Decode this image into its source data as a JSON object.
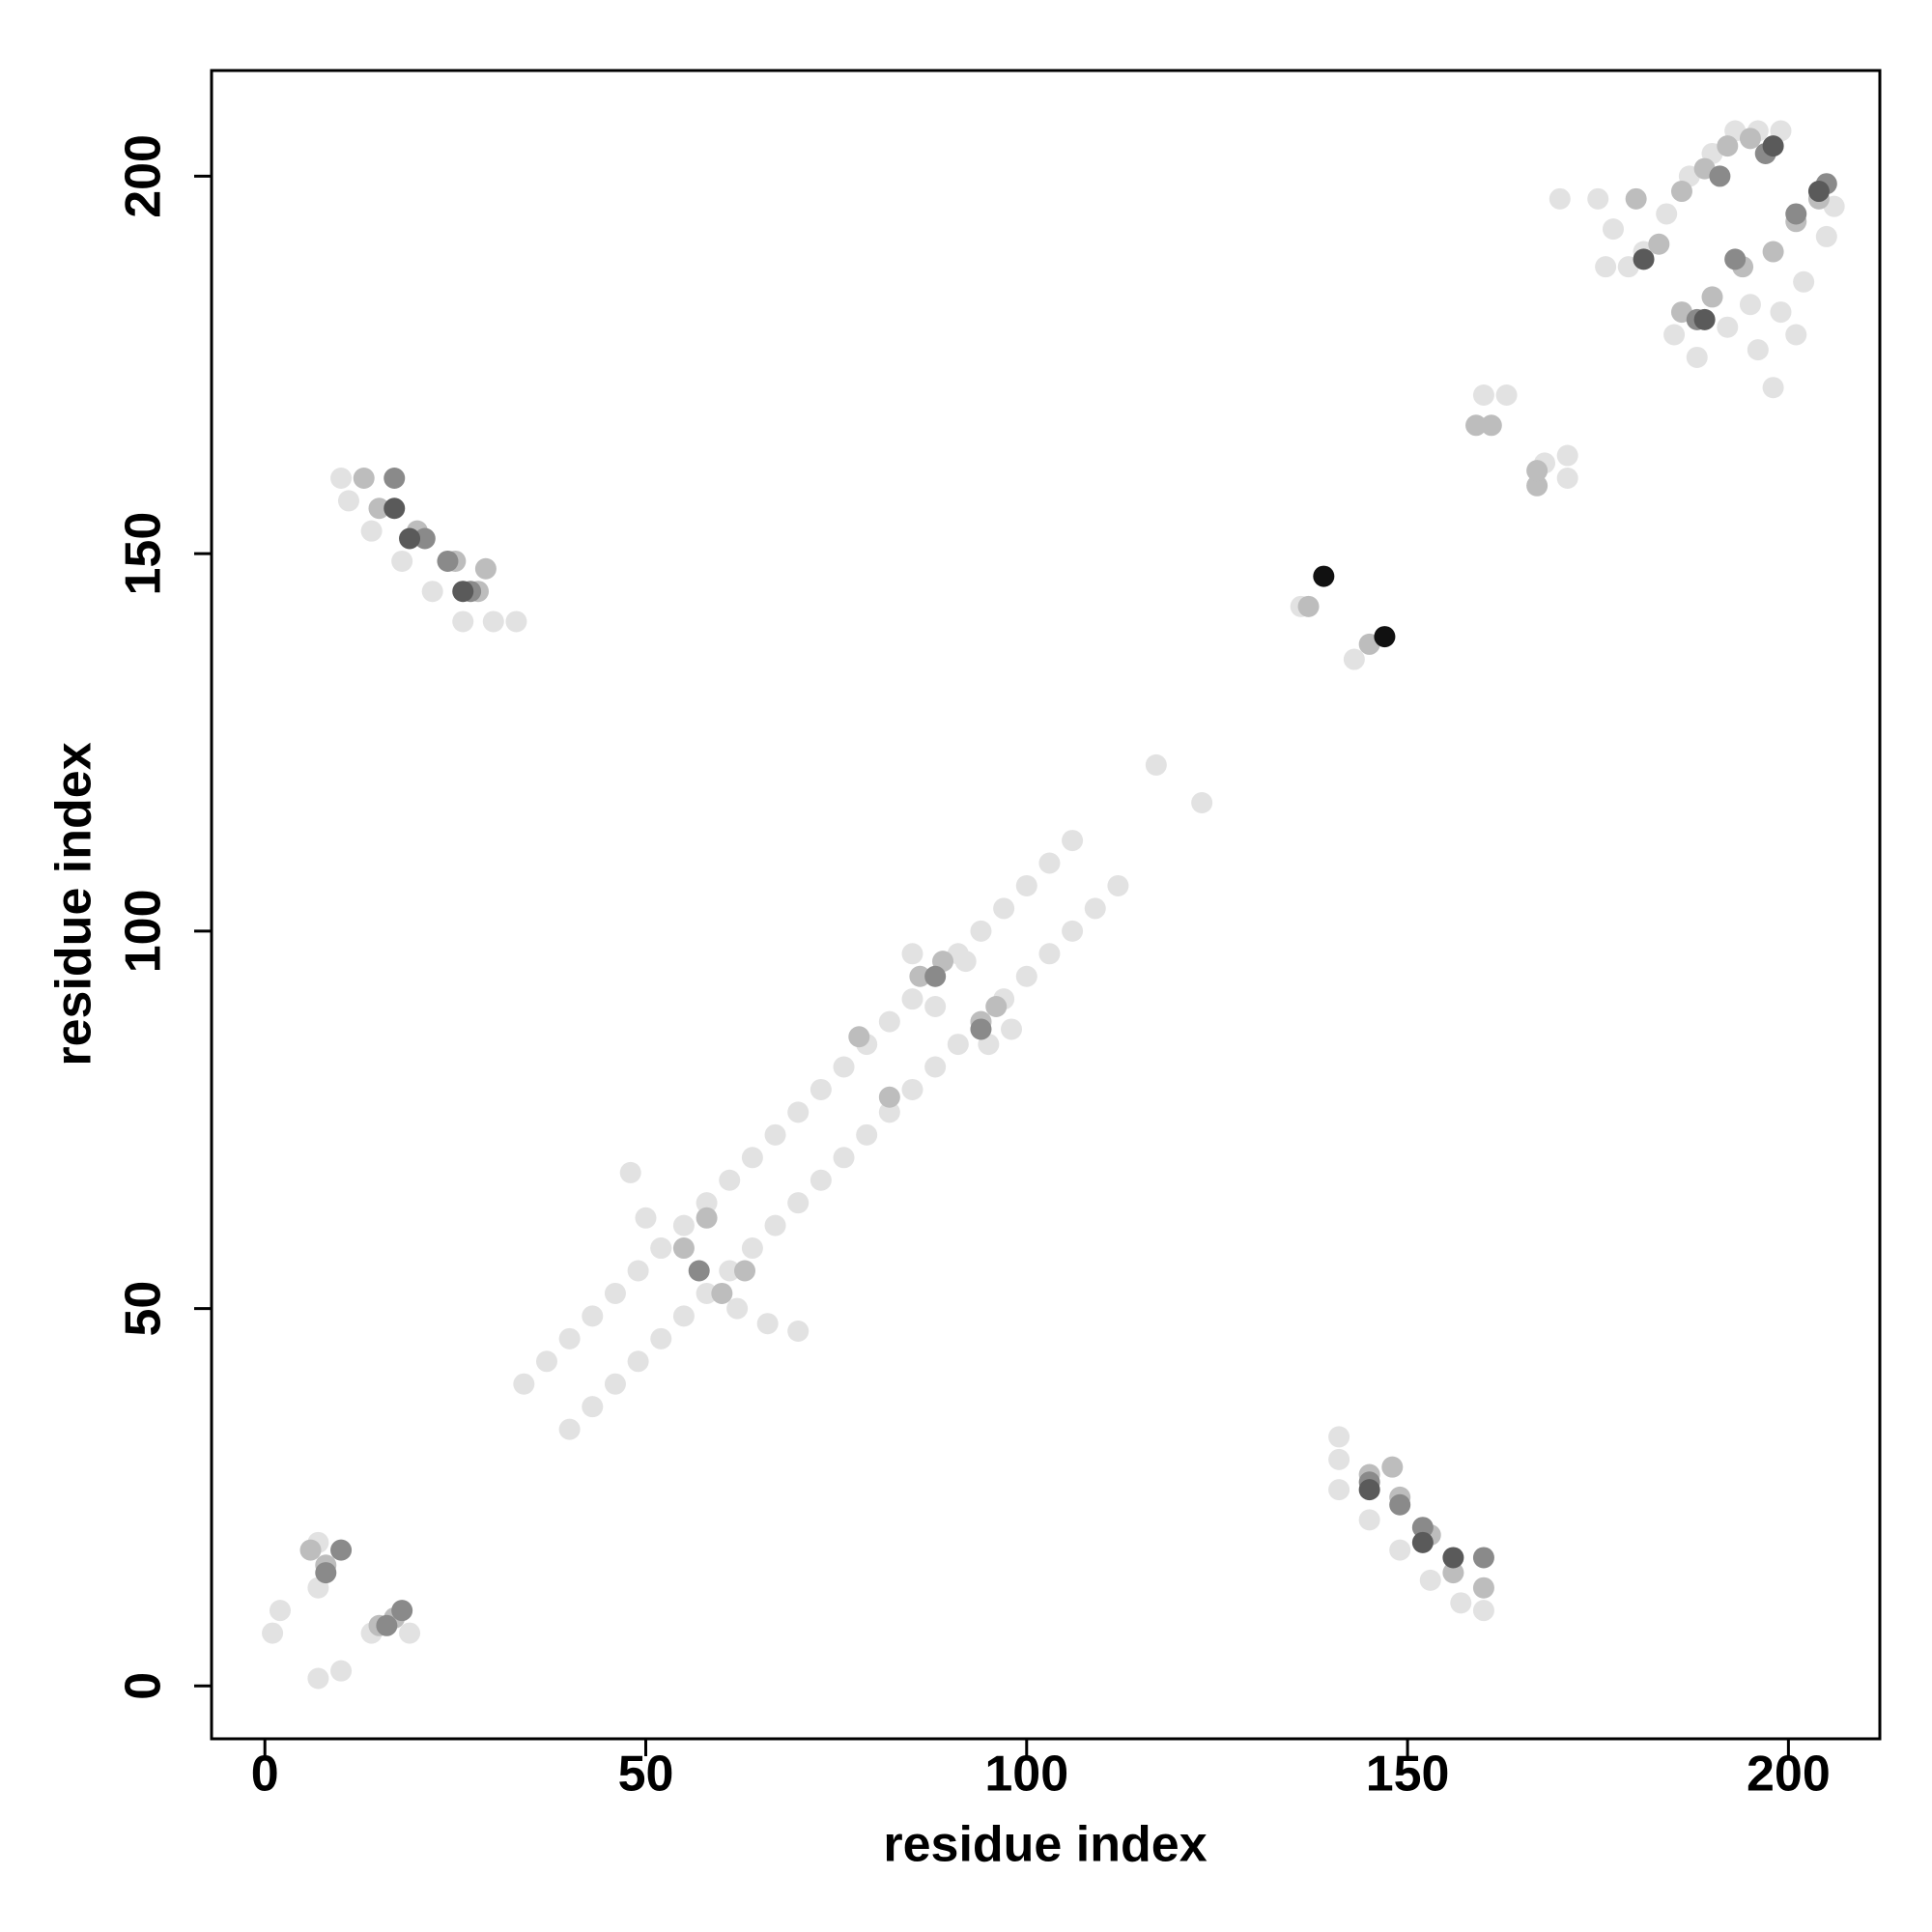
{
  "chart_data": {
    "type": "scatter",
    "xlabel": "residue index",
    "ylabel": "residue index",
    "xlim": [
      -7,
      212
    ],
    "ylim": [
      -7,
      214
    ],
    "xticks": [
      0,
      50,
      100,
      150,
      200
    ],
    "yticks": [
      0,
      50,
      100,
      150,
      200
    ],
    "series": [
      {
        "color": "#e2e2e2",
        "x": [
          34,
          37,
          40,
          43,
          46,
          49,
          52,
          55,
          58,
          61,
          64,
          67,
          70,
          73,
          76,
          79,
          82,
          85,
          88,
          91,
          94,
          97,
          100,
          103,
          106,
          40,
          43,
          46,
          49,
          52,
          55,
          58,
          61,
          64,
          67,
          70,
          73,
          76,
          79,
          82,
          85,
          88,
          91,
          94,
          97,
          100,
          103,
          106,
          109,
          112,
          48,
          50,
          52,
          66,
          70,
          62,
          85,
          88,
          92,
          95,
          98,
          117,
          123,
          10,
          11,
          14,
          18,
          22,
          26,
          30,
          33,
          160,
          157,
          153,
          149,
          145,
          141,
          141,
          141,
          1,
          2,
          7,
          10,
          7,
          14,
          19,
          7,
          175,
          177,
          179,
          181,
          184,
          187,
          190,
          193,
          196,
          199,
          185,
          188,
          192,
          195,
          199,
          202,
          205,
          206,
          198,
          196,
          201,
          170,
          176,
          160,
          163,
          168,
          171,
          171,
          143,
          136
        ],
        "y": [
          40,
          43,
          46,
          49,
          52,
          55,
          58,
          61,
          64,
          67,
          70,
          73,
          76,
          79,
          82,
          85,
          88,
          91,
          94,
          97,
          100,
          103,
          106,
          109,
          112,
          34,
          37,
          40,
          43,
          46,
          49,
          52,
          55,
          58,
          61,
          64,
          67,
          70,
          73,
          76,
          79,
          82,
          85,
          88,
          91,
          94,
          97,
          100,
          103,
          106,
          68,
          62,
          58,
          48,
          47,
          50,
          97,
          90,
          96,
          85,
          87,
          122,
          117,
          160,
          157,
          153,
          149,
          145,
          141,
          141,
          141,
          10,
          11,
          14,
          18,
          22,
          26,
          30,
          33,
          7,
          10,
          1,
          2,
          13,
          7,
          7,
          19,
          197,
          193,
          188,
          190,
          195,
          200,
          203,
          206,
          206,
          206,
          179,
          176,
          180,
          183,
          182,
          186,
          192,
          196,
          172,
          177,
          179,
          197,
          188,
          171,
          171,
          162,
          163,
          160,
          136,
          143
        ]
      },
      {
        "color": "#bdbdbd",
        "x": [
          55,
          58,
          60,
          63,
          86,
          89,
          94,
          96,
          78,
          82,
          13,
          15,
          20,
          25,
          28,
          29,
          160,
          156,
          153,
          149,
          145,
          148,
          6,
          8,
          15,
          17,
          180,
          183,
          186,
          189,
          192,
          195,
          186,
          190,
          194,
          198,
          201,
          204,
          159,
          161,
          167,
          167,
          137,
          145
        ],
        "y": [
          58,
          62,
          52,
          55,
          94,
          96,
          88,
          90,
          86,
          78,
          160,
          156,
          153,
          149,
          145,
          148,
          13,
          15,
          20,
          25,
          28,
          29,
          18,
          16,
          8,
          9,
          197,
          191,
          198,
          201,
          204,
          205,
          182,
          184,
          188,
          190,
          194,
          197,
          167,
          167,
          159,
          161,
          143,
          138
        ]
      },
      {
        "color": "#8a8a8a",
        "x": [
          17,
          21,
          24,
          27,
          160,
          152,
          149,
          145,
          8,
          10,
          18,
          16,
          188,
          191,
          197,
          201,
          205,
          193,
          57,
          88,
          94
        ],
        "y": [
          160,
          152,
          149,
          145,
          17,
          21,
          24,
          27,
          15,
          18,
          10,
          8,
          181,
          200,
          203,
          195,
          199,
          189,
          55,
          94,
          87
        ]
      },
      {
        "color": "#5a5a5a",
        "x": [
          17,
          19,
          26,
          156,
          152,
          145,
          198,
          204,
          181,
          189
        ],
        "y": [
          156,
          152,
          145,
          17,
          19,
          26,
          204,
          198,
          189,
          181
        ]
      },
      {
        "color": "#111111",
        "x": [
          139,
          147
        ],
        "y": [
          147,
          139
        ]
      }
    ]
  }
}
